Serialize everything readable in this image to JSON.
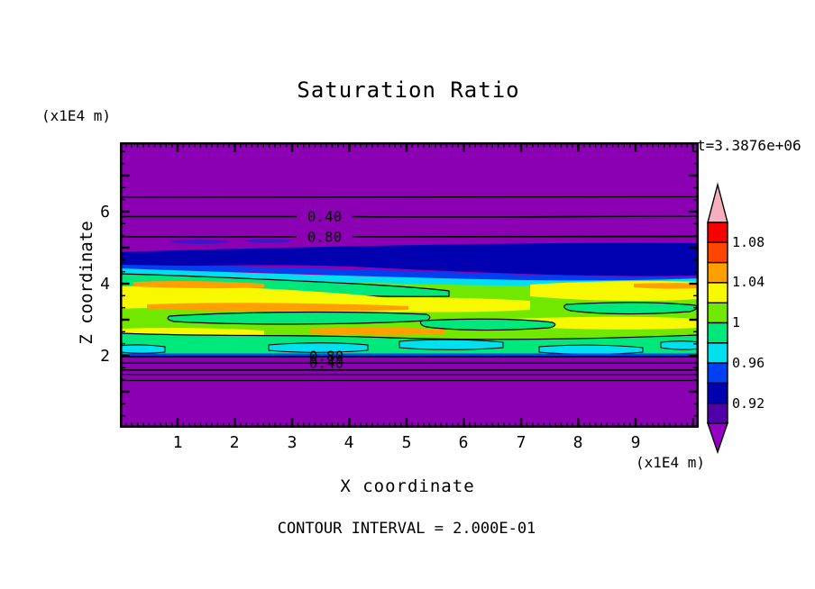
{
  "title": "Saturation Ratio",
  "timestamp": "t=3.3876e+06",
  "x_axis": {
    "label": "X coordinate",
    "units": "(x1E4 m)",
    "ticks": [
      "1",
      "2",
      "3",
      "4",
      "5",
      "6",
      "7",
      "8",
      "9"
    ]
  },
  "y_axis": {
    "label": "Z coordinate",
    "units": "(x1E4 m)",
    "ticks": [
      "6",
      "4",
      "2"
    ]
  },
  "footer": {
    "contour_note": "CONTOUR INTERVAL = 2.000E-01"
  },
  "plot_labels": {
    "upper_040": "0.40",
    "upper_080": "0.80",
    "lower_080": "0.80",
    "lower_040": "0.40"
  },
  "palette": {
    "purple": "#8A00B2",
    "navy": "#0000B0",
    "indigo": "#3A18C8",
    "blue": "#0040F0",
    "cyan": "#00E0EE",
    "spring_green": "#00E87C",
    "chartreuse": "#70E800",
    "yellow": "#F8F800",
    "orange": "#FFA000",
    "contour_line": "#000000"
  },
  "colorbar": {
    "labels": [
      "1.08",
      "1.04",
      "1",
      "0.96",
      "0.92"
    ],
    "colors": [
      "#F80000",
      "#FF4500",
      "#FFA000",
      "#F8F800",
      "#70E800",
      "#00E87C",
      "#00E0EE",
      "#0040F0",
      "#0000B0",
      "#5000A8"
    ],
    "arrow_top": "#F7AEBE",
    "arrow_bottom": "#9400C4"
  },
  "chart_data": {
    "type": "heatmap",
    "title": "Saturation Ratio",
    "xlabel": "X coordinate (x1E4 m)",
    "ylabel": "Z coordinate (x1E4 m)",
    "xlim": [
      0,
      10.1
    ],
    "ylim": [
      0,
      7.9
    ],
    "time_annotation": "t=3.3876e+06",
    "contour_interval": 0.2,
    "colorbar": {
      "orientation": "vertical",
      "range": [
        0.9,
        1.1
      ],
      "level_step": 0.02,
      "tick_labels": [
        1.08,
        1.04,
        1,
        0.96,
        0.92
      ],
      "out_of_range_arrows": true
    },
    "labeled_contours": [
      {
        "value": 0.4,
        "z": 5.9
      },
      {
        "value": 0.8,
        "z": 5.35
      },
      {
        "value": 0.8,
        "z": 1.95
      },
      {
        "value": 0.4,
        "z": 1.78
      }
    ],
    "unlabeled_contour_z": [
      6.4,
      1.65,
      1.5,
      1.3
    ],
    "bands": [
      {
        "z_from": 4.95,
        "z_to": 7.9,
        "value": "< 0.90",
        "color_name": "purple",
        "description": "unsaturated background above cloud layer"
      },
      {
        "z_from": 4.35,
        "z_to": 4.95,
        "value": "0.92-0.94",
        "color_name": "navy/blue",
        "description": "dark blue sub-saturated band, thicker toward right"
      },
      {
        "z_from": 4.0,
        "z_to": 4.4,
        "value": "0.94-0.98",
        "color_name": "cyan",
        "description": "thin cyan transition strip"
      },
      {
        "z_from": 2.15,
        "z_to": 4.1,
        "value": "0.98-1.08",
        "color_name": "green/yellow/orange",
        "description": "near-saturated layer: chartreuse field with yellow and orange streaks (supersaturation up to ~1.06-1.08) and spring-green/cyan patches (~0.96-1.00)"
      },
      {
        "z_from": 2.0,
        "z_to": 2.15,
        "value": "0.92-0.98",
        "color_name": "cyan/blue",
        "description": "thin cyan-blue line at layer base"
      },
      {
        "z_from": 0.0,
        "z_to": 2.0,
        "value": "< 0.90",
        "color_name": "purple",
        "description": "unsaturated background below cloud layer"
      }
    ]
  }
}
